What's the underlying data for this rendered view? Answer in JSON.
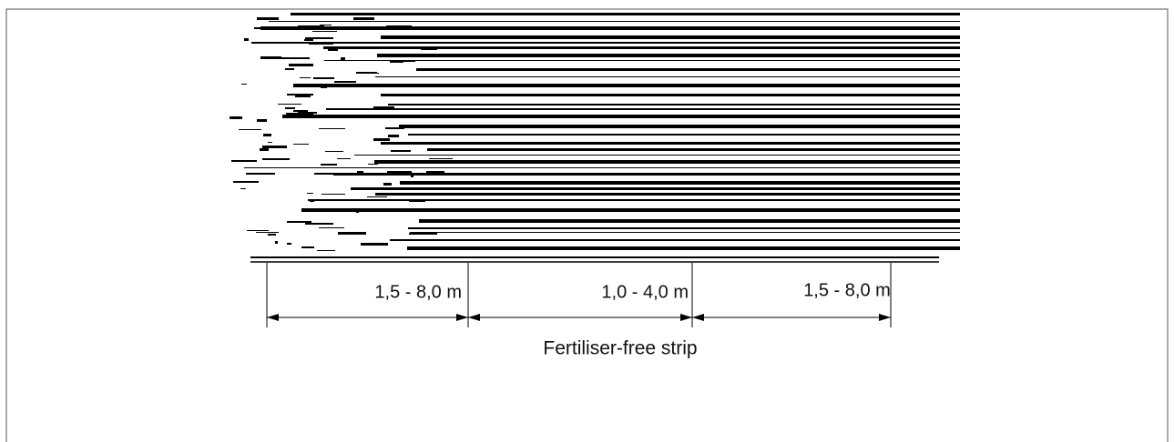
{
  "dimensions": [
    {
      "label": "1,5 - 8,0 m"
    },
    {
      "label": "1,0 - 4,0 m"
    },
    {
      "label": "1,5 - 8,0 m"
    }
  ],
  "caption": "Fertiliser-free strip"
}
